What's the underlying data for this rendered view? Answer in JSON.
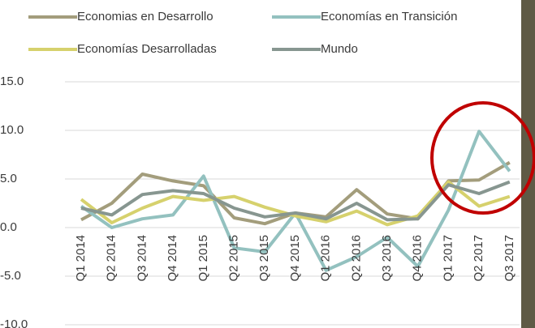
{
  "chart_data": {
    "type": "line",
    "categories": [
      "Q1 2014",
      "Q2 2014",
      "Q3 2014",
      "Q4 2014",
      "Q1 2015",
      "Q2 2015",
      "Q3 2015",
      "Q4 2015",
      "Q1 2016",
      "Q2 2016",
      "Q3 2016",
      "Q4 2016",
      "Q1 2017",
      "Q2 2017",
      "Q3 2017"
    ],
    "series": [
      {
        "name": "Economias en Desarrollo",
        "color": "#a39d7c",
        "values": [
          0.8,
          2.5,
          5.5,
          4.8,
          4.3,
          1.0,
          0.4,
          1.5,
          1.1,
          3.9,
          1.4,
          0.9,
          4.8,
          4.9,
          6.7
        ]
      },
      {
        "name": "Economías en Transición",
        "color": "#93c1bf",
        "values": [
          2.2,
          0.0,
          0.9,
          1.3,
          5.3,
          -2.1,
          -2.5,
          1.5,
          -4.4,
          -3.0,
          -1.0,
          -4.0,
          1.8,
          9.9,
          5.8
        ]
      },
      {
        "name": "Economías Desarrolladas",
        "color": "#d6d16d",
        "values": [
          2.9,
          0.5,
          2.0,
          3.2,
          2.8,
          3.2,
          2.1,
          1.2,
          0.6,
          1.7,
          0.3,
          1.2,
          4.7,
          2.2,
          3.2
        ]
      },
      {
        "name": "Mundo",
        "color": "#879690",
        "values": [
          2.0,
          1.3,
          3.4,
          3.8,
          3.5,
          2.0,
          1.1,
          1.5,
          0.9,
          2.5,
          0.8,
          0.9,
          4.4,
          3.5,
          4.7
        ]
      }
    ],
    "ylim": [
      -10,
      15
    ],
    "yticks": [
      {
        "value": -10,
        "label": "-10.0"
      },
      {
        "value": -5,
        "label": "-5.0"
      },
      {
        "value": 0,
        "label": "0.0"
      },
      {
        "value": 5,
        "label": "5.0"
      },
      {
        "value": 10,
        "label": "10.0"
      },
      {
        "value": 15,
        "label": "15.0"
      }
    ],
    "grid": true
  }
}
